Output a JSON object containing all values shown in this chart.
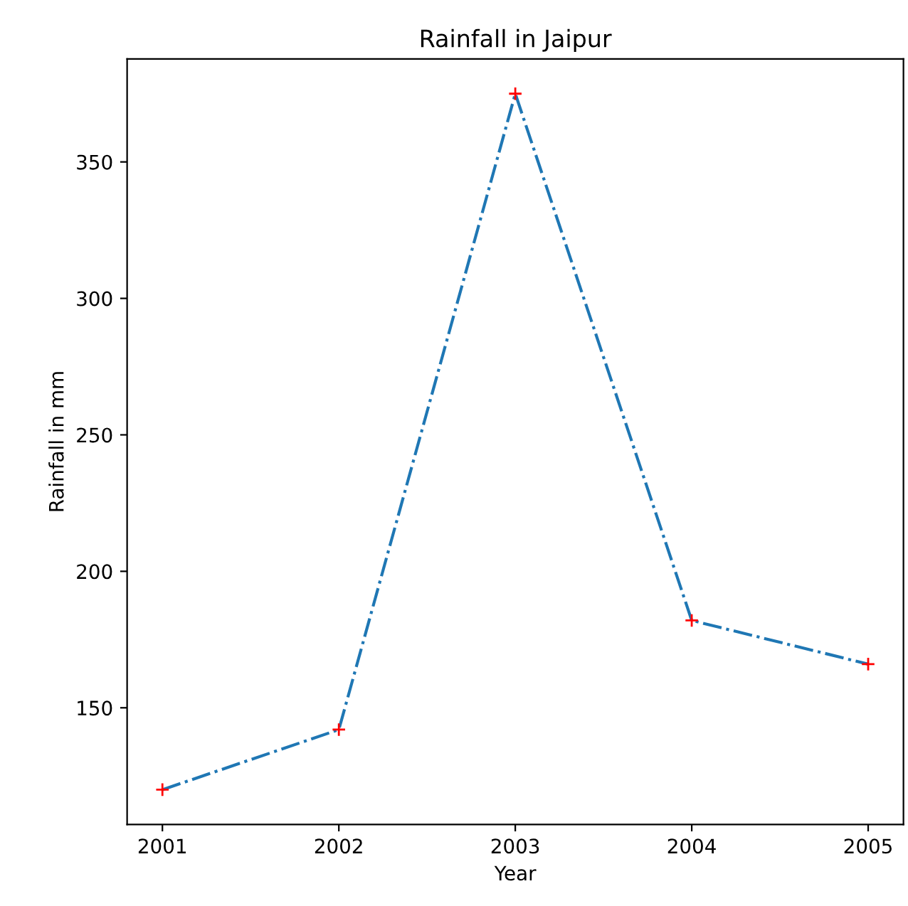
{
  "chart_data": {
    "type": "line",
    "title": "Rainfall in Jaipur",
    "xlabel": "Year",
    "ylabel": "Rainfall in mm",
    "x": [
      2001,
      2002,
      2003,
      2004,
      2005
    ],
    "series": [
      {
        "color": "#1f77b4",
        "colors": [
          "#ff0000",
          "#ff0000",
          "#ff0000",
          "#ff0000",
          "#ff0000"
        ],
        "values": [
          120,
          142,
          375,
          182,
          166
        ]
      }
    ],
    "xlim": [
      2000.8,
      2005.2
    ],
    "xticks": [
      2001,
      2002,
      2003,
      2004,
      2005
    ],
    "ylim": [
      107.25,
      387.75
    ],
    "yticks": [
      150,
      200,
      250,
      300,
      350
    ],
    "marker": "cross",
    "line_style": "dashdot",
    "grid": false,
    "legend": false
  }
}
